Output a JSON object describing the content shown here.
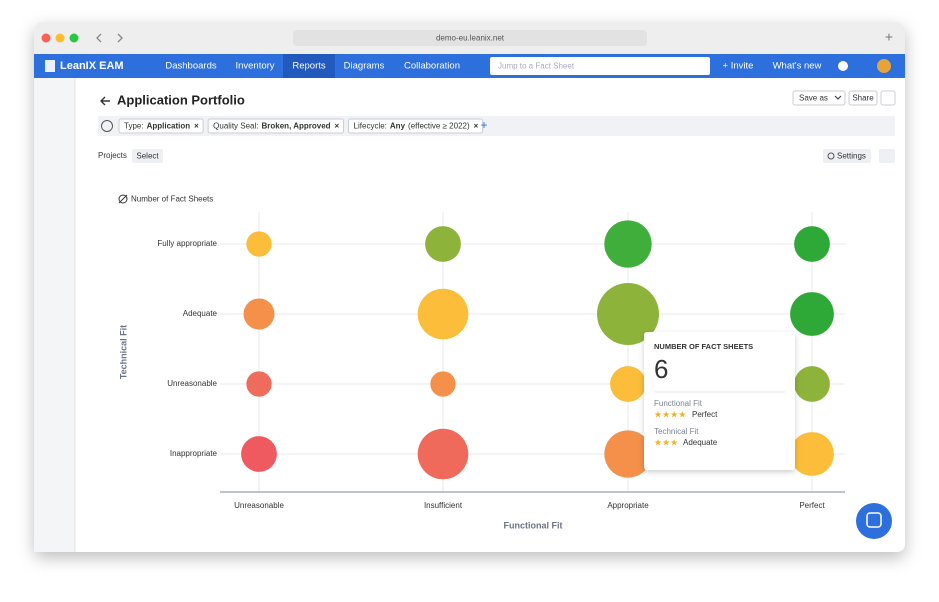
{
  "browser": {
    "url": "demo-eu.leanix.net"
  },
  "nav": {
    "brand": "LeanIX EAM",
    "items": [
      "Dashboards",
      "Inventory",
      "Reports",
      "Diagrams",
      "Collaboration"
    ],
    "search_placeholder": "Jump to a Fact Sheet",
    "invite": "+ Invite",
    "whats_new": "What's new"
  },
  "header": {
    "title": "Application Portfolio",
    "save_as": "Save as",
    "share": "Share"
  },
  "filters": [
    {
      "label": "Type:",
      "value": "Application"
    },
    {
      "label": "Quality Seal:",
      "value": "Broken, Approved"
    },
    {
      "label": "Lifecycle:",
      "value": "Any",
      "extra": "(effective ≥ 2022)"
    }
  ],
  "toolbar": {
    "projects": "Projects",
    "select": "Select",
    "settings": "Settings"
  },
  "chart_data": {
    "type": "bubble",
    "size_legend": "Number of Fact Sheets",
    "x_label": "Functional Fit",
    "y_label": "Technical Fit",
    "categories": [
      "Unreasonable",
      "Insufficient",
      "Appropriate",
      "Perfect"
    ],
    "series": [
      {
        "name": "Inappropriate",
        "values": [
          4,
          8,
          7,
          6
        ],
        "colors": [
          "#ee5a60",
          "#f06a5c",
          "#f5904a",
          "#fbbd3a"
        ]
      },
      {
        "name": "Unreasonable",
        "values": [
          2,
          2,
          4,
          4
        ],
        "colors": [
          "#ef6b5b",
          "#f5904a",
          "#fbbd3a",
          "#8db33a"
        ]
      },
      {
        "name": "Adequate",
        "values": [
          3,
          8,
          12,
          6
        ],
        "colors": [
          "#f5904a",
          "#fbbd3a",
          "#8db33a",
          "#2ea836"
        ]
      },
      {
        "name": "Fully appropriate",
        "values": [
          2,
          4,
          7,
          4
        ],
        "colors": [
          "#fbbd3a",
          "#8db33a",
          "#3fae3a",
          "#2ea836"
        ]
      }
    ],
    "grid": true,
    "tooltip": {
      "title": "NUMBER OF FACT SHEETS"
    }
  }
}
